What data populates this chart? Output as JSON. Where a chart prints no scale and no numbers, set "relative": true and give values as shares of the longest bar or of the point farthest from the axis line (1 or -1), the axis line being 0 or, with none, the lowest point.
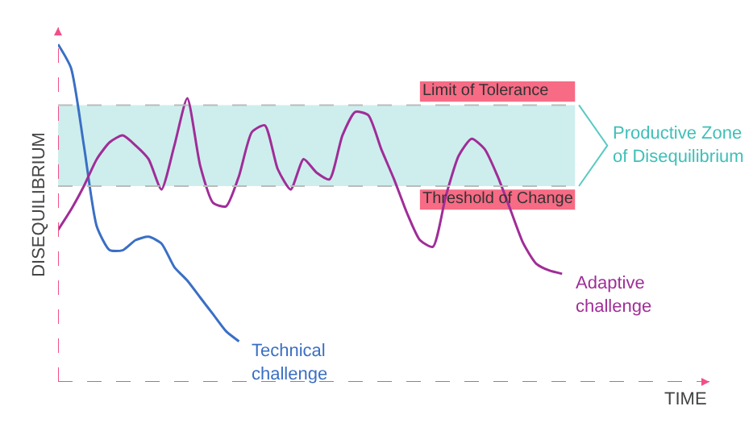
{
  "chart_data": {
    "type": "line",
    "relative": true,
    "annotations": [
      "TIME"
    ],
    "ylabel": "DISEQUILIBRIUM",
    "legend": false,
    "grid": false,
    "categories": [
      null,
      null,
      null,
      null,
      null,
      null,
      null,
      null,
      null,
      null,
      null,
      null,
      null,
      null,
      null,
      null,
      null,
      null,
      null,
      null,
      null,
      null,
      null,
      null,
      null,
      null,
      null,
      null,
      null,
      null,
      null,
      null,
      null,
      null,
      null,
      null,
      null,
      null,
      null,
      null,
      null
    ],
    "series": [
      {
        "name": "Technical challenge",
        "color": "#3a6fc4",
        "values": [
          1.0,
          0.93,
          0.7,
          0.46,
          0.39,
          0.39,
          0.42,
          0.43,
          0.41,
          0.34,
          0.3,
          0.25,
          0.2,
          0.15,
          0.12,
          null,
          null,
          null,
          null,
          null,
          null,
          null,
          null,
          null,
          null,
          null,
          null,
          null,
          null,
          null,
          null,
          null,
          null,
          null,
          null,
          null,
          null,
          null,
          null,
          null,
          null
        ]
      },
      {
        "name": "Adaptive challenge",
        "color": "#a02d98",
        "values": [
          0.45,
          0.51,
          0.58,
          0.66,
          0.71,
          0.73,
          0.7,
          0.66,
          0.57,
          0.7,
          0.84,
          0.64,
          0.53,
          0.52,
          0.61,
          0.74,
          0.76,
          0.63,
          0.57,
          0.66,
          0.62,
          0.6,
          0.73,
          0.8,
          0.79,
          0.69,
          0.6,
          0.5,
          0.42,
          0.4,
          0.55,
          0.67,
          0.72,
          0.69,
          0.61,
          0.51,
          0.41,
          0.35,
          0.33,
          0.32,
          null
        ]
      }
    ],
    "ref_lines": [
      {
        "axis": "y",
        "value": 0.82,
        "label": "Limit of Tolerance",
        "color": "#bbbbbb",
        "line_style": "dashed"
      },
      {
        "axis": "y",
        "value": 0.58,
        "label": "Threshold of Change",
        "color": "#bbbbbb",
        "line_style": "dashed"
      }
    ],
    "bands": [
      {
        "axis": "y",
        "from": 0.58,
        "to": 0.82,
        "label": "Productive Zone\nof Disequilibrium",
        "color": "#cdeeed"
      }
    ]
  }
}
